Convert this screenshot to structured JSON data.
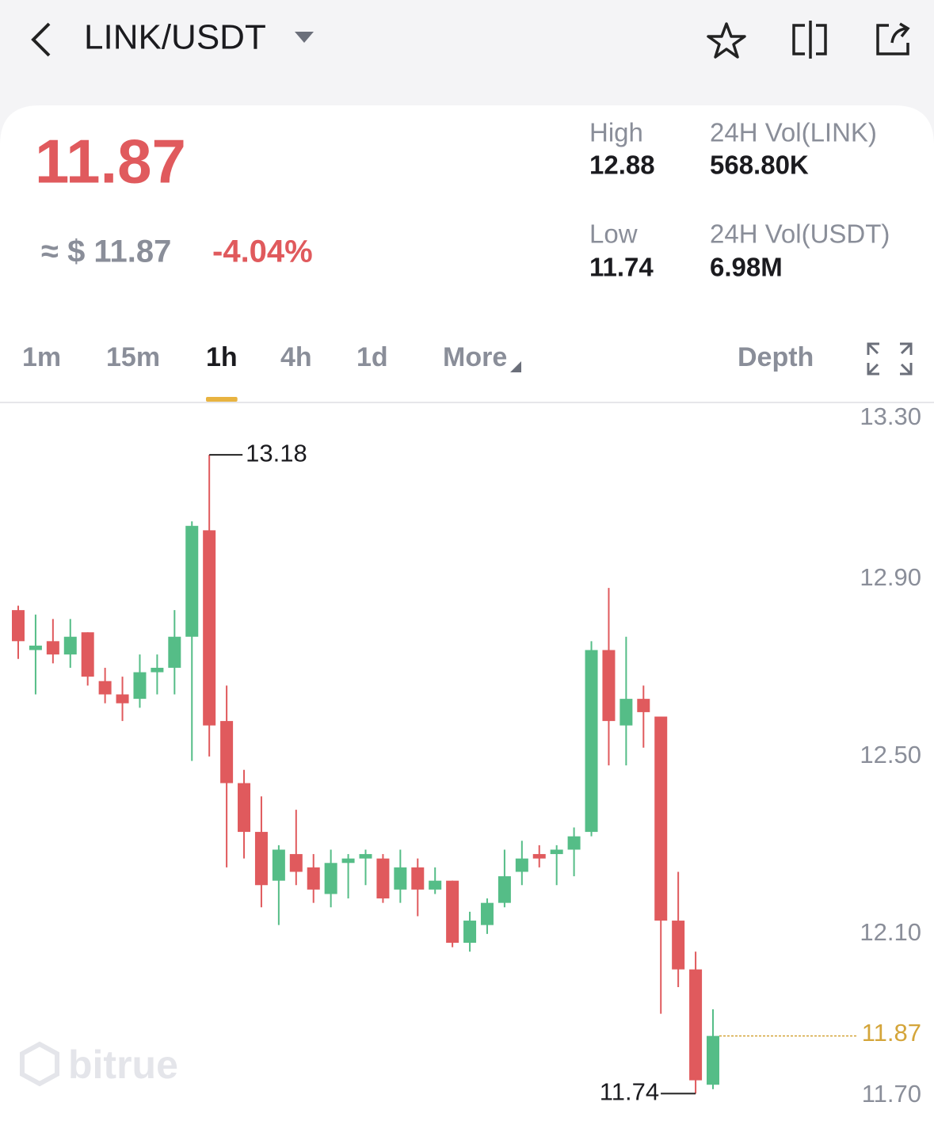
{
  "header": {
    "pair": "LINK/USDT"
  },
  "ticker": {
    "price": "11.87",
    "fiat": "≈ $ 11.87",
    "change": "-4.04%",
    "stats": [
      {
        "label": "High",
        "value": "12.88"
      },
      {
        "label": "24H Vol(LINK)",
        "value": "568.80K"
      },
      {
        "label": "Low",
        "value": "11.74"
      },
      {
        "label": "24H Vol(USDT)",
        "value": "6.98M"
      }
    ]
  },
  "tabs": [
    "1m",
    "15m",
    "1h",
    "4h",
    "1d",
    "More",
    "Depth"
  ],
  "active_tab": 2,
  "chart_data": {
    "type": "candlestick",
    "open": [
      12.83,
      12.74,
      12.76,
      12.73,
      12.78,
      12.67,
      12.64,
      12.63,
      12.69,
      12.7,
      12.77,
      13.01,
      12.58,
      12.44,
      12.33,
      12.22,
      12.28,
      12.25,
      12.19,
      12.26,
      12.27,
      12.27,
      12.2,
      12.25,
      12.2,
      12.22,
      12.08,
      12.12,
      12.17,
      12.24,
      12.28,
      12.28,
      12.29,
      12.33,
      12.74,
      12.57,
      12.63,
      12.59,
      12.13,
      12.02,
      11.76
    ],
    "high": [
      12.84,
      12.82,
      12.81,
      12.81,
      12.78,
      12.7,
      12.68,
      12.73,
      12.73,
      12.83,
      13.03,
      13.18,
      12.66,
      12.47,
      12.41,
      12.3,
      12.38,
      12.28,
      12.29,
      12.28,
      12.29,
      12.28,
      12.29,
      12.27,
      12.25,
      12.22,
      12.15,
      12.18,
      12.29,
      12.31,
      12.3,
      12.3,
      12.34,
      12.76,
      12.88,
      12.77,
      12.66,
      12.59,
      12.24,
      12.06,
      11.93
    ],
    "low": [
      12.72,
      12.64,
      12.71,
      12.7,
      12.66,
      12.62,
      12.58,
      12.61,
      12.64,
      12.64,
      12.49,
      12.5,
      12.25,
      12.27,
      12.16,
      12.12,
      12.21,
      12.17,
      12.16,
      12.18,
      12.21,
      12.17,
      12.17,
      12.14,
      12.19,
      12.07,
      12.06,
      12.1,
      12.16,
      12.21,
      12.25,
      12.21,
      12.23,
      12.32,
      12.48,
      12.48,
      12.52,
      11.92,
      11.98,
      11.74,
      11.75
    ],
    "close": [
      12.76,
      12.75,
      12.73,
      12.77,
      12.68,
      12.64,
      12.62,
      12.69,
      12.7,
      12.77,
      13.02,
      12.57,
      12.44,
      12.33,
      12.21,
      12.29,
      12.24,
      12.2,
      12.26,
      12.27,
      12.28,
      12.18,
      12.25,
      12.2,
      12.22,
      12.08,
      12.13,
      12.17,
      12.23,
      12.27,
      12.27,
      12.29,
      12.32,
      12.74,
      12.58,
      12.63,
      12.6,
      12.13,
      12.02,
      11.77,
      11.87
    ],
    "ylim": [
      11.68,
      13.3
    ],
    "yticks": [
      {
        "value": 13.3,
        "label": "13.30"
      },
      {
        "value": 12.9,
        "label": "12.90"
      },
      {
        "value": 12.5,
        "label": "12.50"
      },
      {
        "value": 12.1,
        "label": "12.10"
      },
      {
        "value": 11.7,
        "label": "11.70"
      }
    ],
    "grid": false,
    "up_color": "#55bd87",
    "down_color": "#e05a5d",
    "last_price_color": "#d4a53a",
    "watermark": "bitrue"
  }
}
